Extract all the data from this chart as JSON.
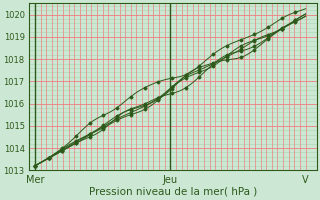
{
  "bg_color": "#cce8d4",
  "plot_bg_color": "#cce8d4",
  "grid_color_red": "#f08080",
  "grid_color_green": "#a8d8b0",
  "line_color": "#2d5a1b",
  "ylim": [
    1013,
    1020.5
  ],
  "yticks": [
    1013,
    1014,
    1015,
    1016,
    1017,
    1018,
    1019,
    1020
  ],
  "xlabel": "Pression niveau de la mer( hPa )",
  "xtick_labels": [
    "Mer",
    "Jeu",
    "V"
  ],
  "xtick_positions": [
    0.0,
    0.5,
    1.0
  ],
  "n_vlines": 48,
  "n_hminor": 5
}
